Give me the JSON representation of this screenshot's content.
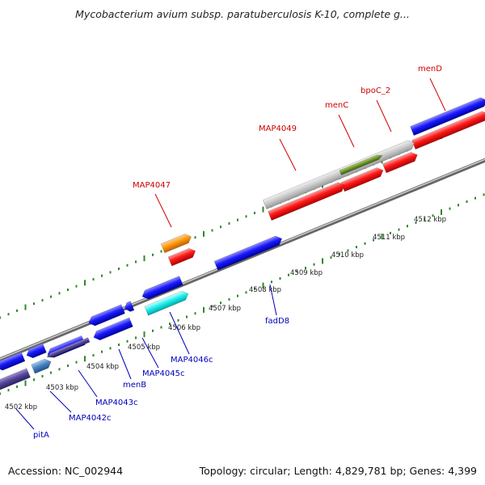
{
  "title": "Mycobacterium avium subsp. paratuberculosis K-10, complete g...",
  "footer": {
    "accession": "Accession: NC_002944",
    "summary": "Topology: circular; Length: 4,829,781 bp; Genes: 4,399"
  },
  "colors": {
    "forward_gene": "#ff0000",
    "reverse_gene": "#0000ee",
    "forward_label": "#cc0000",
    "reverse_label": "#0000bb",
    "backbone": "#888888",
    "tick": "#2a8a2a"
  },
  "scale": {
    "ticks": [
      {
        "label": "4502 kbp"
      },
      {
        "label": "4503 kbp"
      },
      {
        "label": "4504 kbp"
      },
      {
        "label": "4505 kbp"
      },
      {
        "label": "4506 kbp"
      },
      {
        "label": "4507 kbp"
      },
      {
        "label": "4508 kbp"
      },
      {
        "label": "4509 kbp"
      },
      {
        "label": "4510 kbp"
      },
      {
        "label": "4511 kbp"
      },
      {
        "label": "4512 kbp"
      }
    ]
  },
  "genes": [
    {
      "name": "pitA",
      "strand": "reverse",
      "color": "#0000ee"
    },
    {
      "name": "MAP4042c",
      "strand": "reverse",
      "color": "#0000ee"
    },
    {
      "name": "MAP4043c",
      "strand": "reverse",
      "color": "#0000ee"
    },
    {
      "name": "menB",
      "strand": "reverse",
      "color": "#0000ee"
    },
    {
      "name": "MAP4045c",
      "strand": "reverse",
      "color": "#0000ee"
    },
    {
      "name": "MAP4046c",
      "strand": "reverse",
      "color": "#00eeee"
    },
    {
      "name": "MAP4047",
      "strand": "forward",
      "color": "#ff0000"
    },
    {
      "name": "fadD8",
      "strand": "reverse",
      "color": "#0000ee"
    },
    {
      "name": "MAP4049",
      "strand": "forward",
      "color": "#ff0000"
    },
    {
      "name": "menC",
      "strand": "forward",
      "color": "#ff0000"
    },
    {
      "name": "bpoC_2",
      "strand": "forward",
      "color": "#ff0000"
    },
    {
      "name": "menD",
      "strand": "forward",
      "color": "#ff0000"
    }
  ]
}
